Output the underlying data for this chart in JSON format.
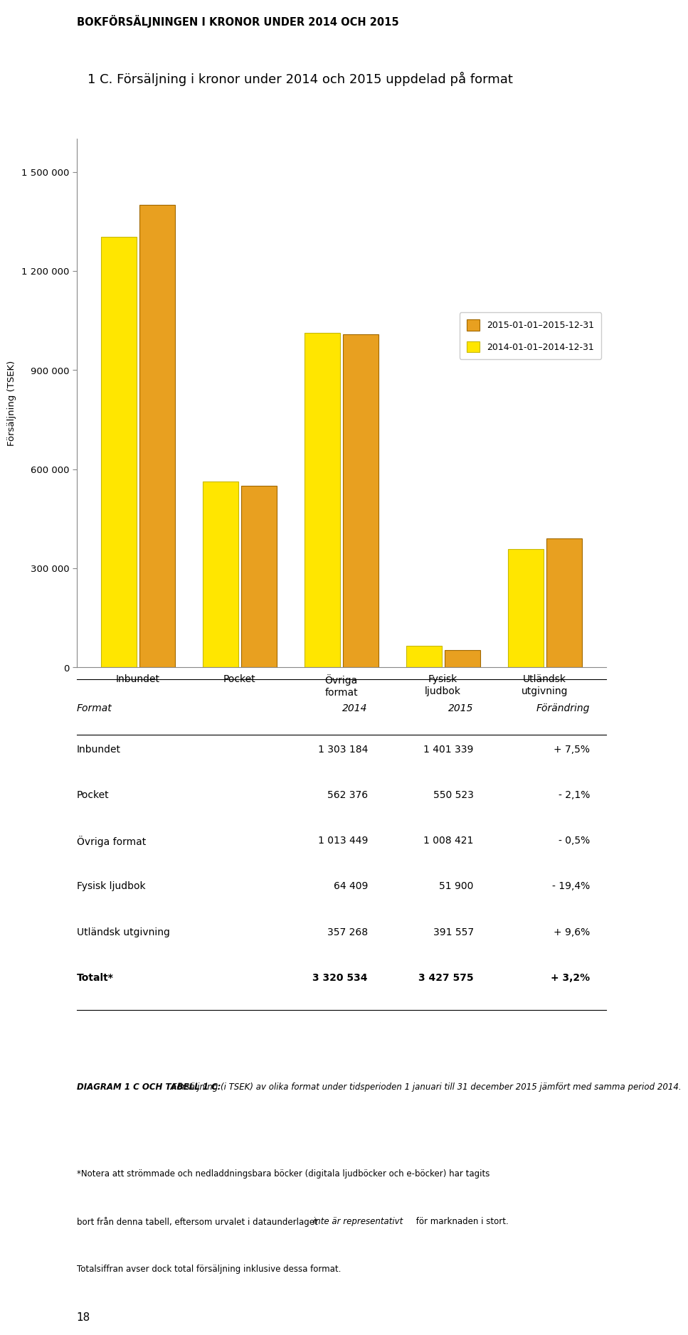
{
  "page_title": "BOKFÖRSÄLJNINGEN I KRONOR UNDER 2014 OCH 2015",
  "chart_title": "1 C. Försäljning i kronor under 2014 och 2015 uppdelad på format",
  "ylabel": "Försäljning (TSEK)",
  "categories": [
    "Inbundet",
    "Pocket",
    "Övriga\nformat",
    "Fysisk\nljudbok",
    "Utländsk\nutgivning"
  ],
  "values_2014": [
    1303184,
    562376,
    1013449,
    64409,
    357268
  ],
  "values_2015": [
    1401339,
    550523,
    1008421,
    51900,
    391557
  ],
  "color_2014": "#FFE600",
  "color_2015": "#E8A020",
  "color_2014_edge": "#C8B800",
  "color_2015_edge": "#A06800",
  "legend_2015": "2015-01-01–2015-12-31",
  "legend_2014": "2014-01-01–2014-12-31",
  "ylim": [
    0,
    1600000
  ],
  "yticks": [
    0,
    300000,
    600000,
    900000,
    1200000,
    1500000
  ],
  "ytick_labels": [
    "0",
    "300 000",
    "600 000",
    "900 000",
    "1 200 000",
    "1 500 000"
  ],
  "table_headers": [
    "Format",
    "2014",
    "2015",
    "Förändring"
  ],
  "table_rows": [
    [
      "Inbundet",
      "1 303 184",
      "1 401 339",
      "+ 7,5%"
    ],
    [
      "Pocket",
      "562 376",
      "550 523",
      "- 2,1%"
    ],
    [
      "Övriga format",
      "1 013 449",
      "1 008 421",
      "- 0,5%"
    ],
    [
      "Fysisk ljudbok",
      "64 409",
      "51 900",
      "- 19,4%"
    ],
    [
      "Utländsk utgivning",
      "357 268",
      "391 557",
      "+ 9,6%"
    ],
    [
      "Totalt*",
      "3 320 534",
      "3 427 575",
      "+ 3,2%"
    ]
  ],
  "caption_bold": "DIAGRAM 1 C OCH TABELL 1 C:",
  "caption_italic": " Försäljning (i TSEK) av olika format under tidsperioden 1 januari till 31 december 2015 jämfört med samma period 2014.",
  "footnote_line1": "*Notera att strömmade och nedladdningsbara böcker (digitala ljudböcker och e-böcker) har tagits",
  "footnote_line2": "bort från denna tabell, eftersom urvalet i dataunderlaget ",
  "footnote_italic": "inte är representativt",
  "footnote_line2b": " för marknaden i stort.",
  "footnote_line3": "Totalsiffran avser dock total försäljning inklusive dessa format.",
  "page_number": "18",
  "background_color": "#FFFFFF"
}
